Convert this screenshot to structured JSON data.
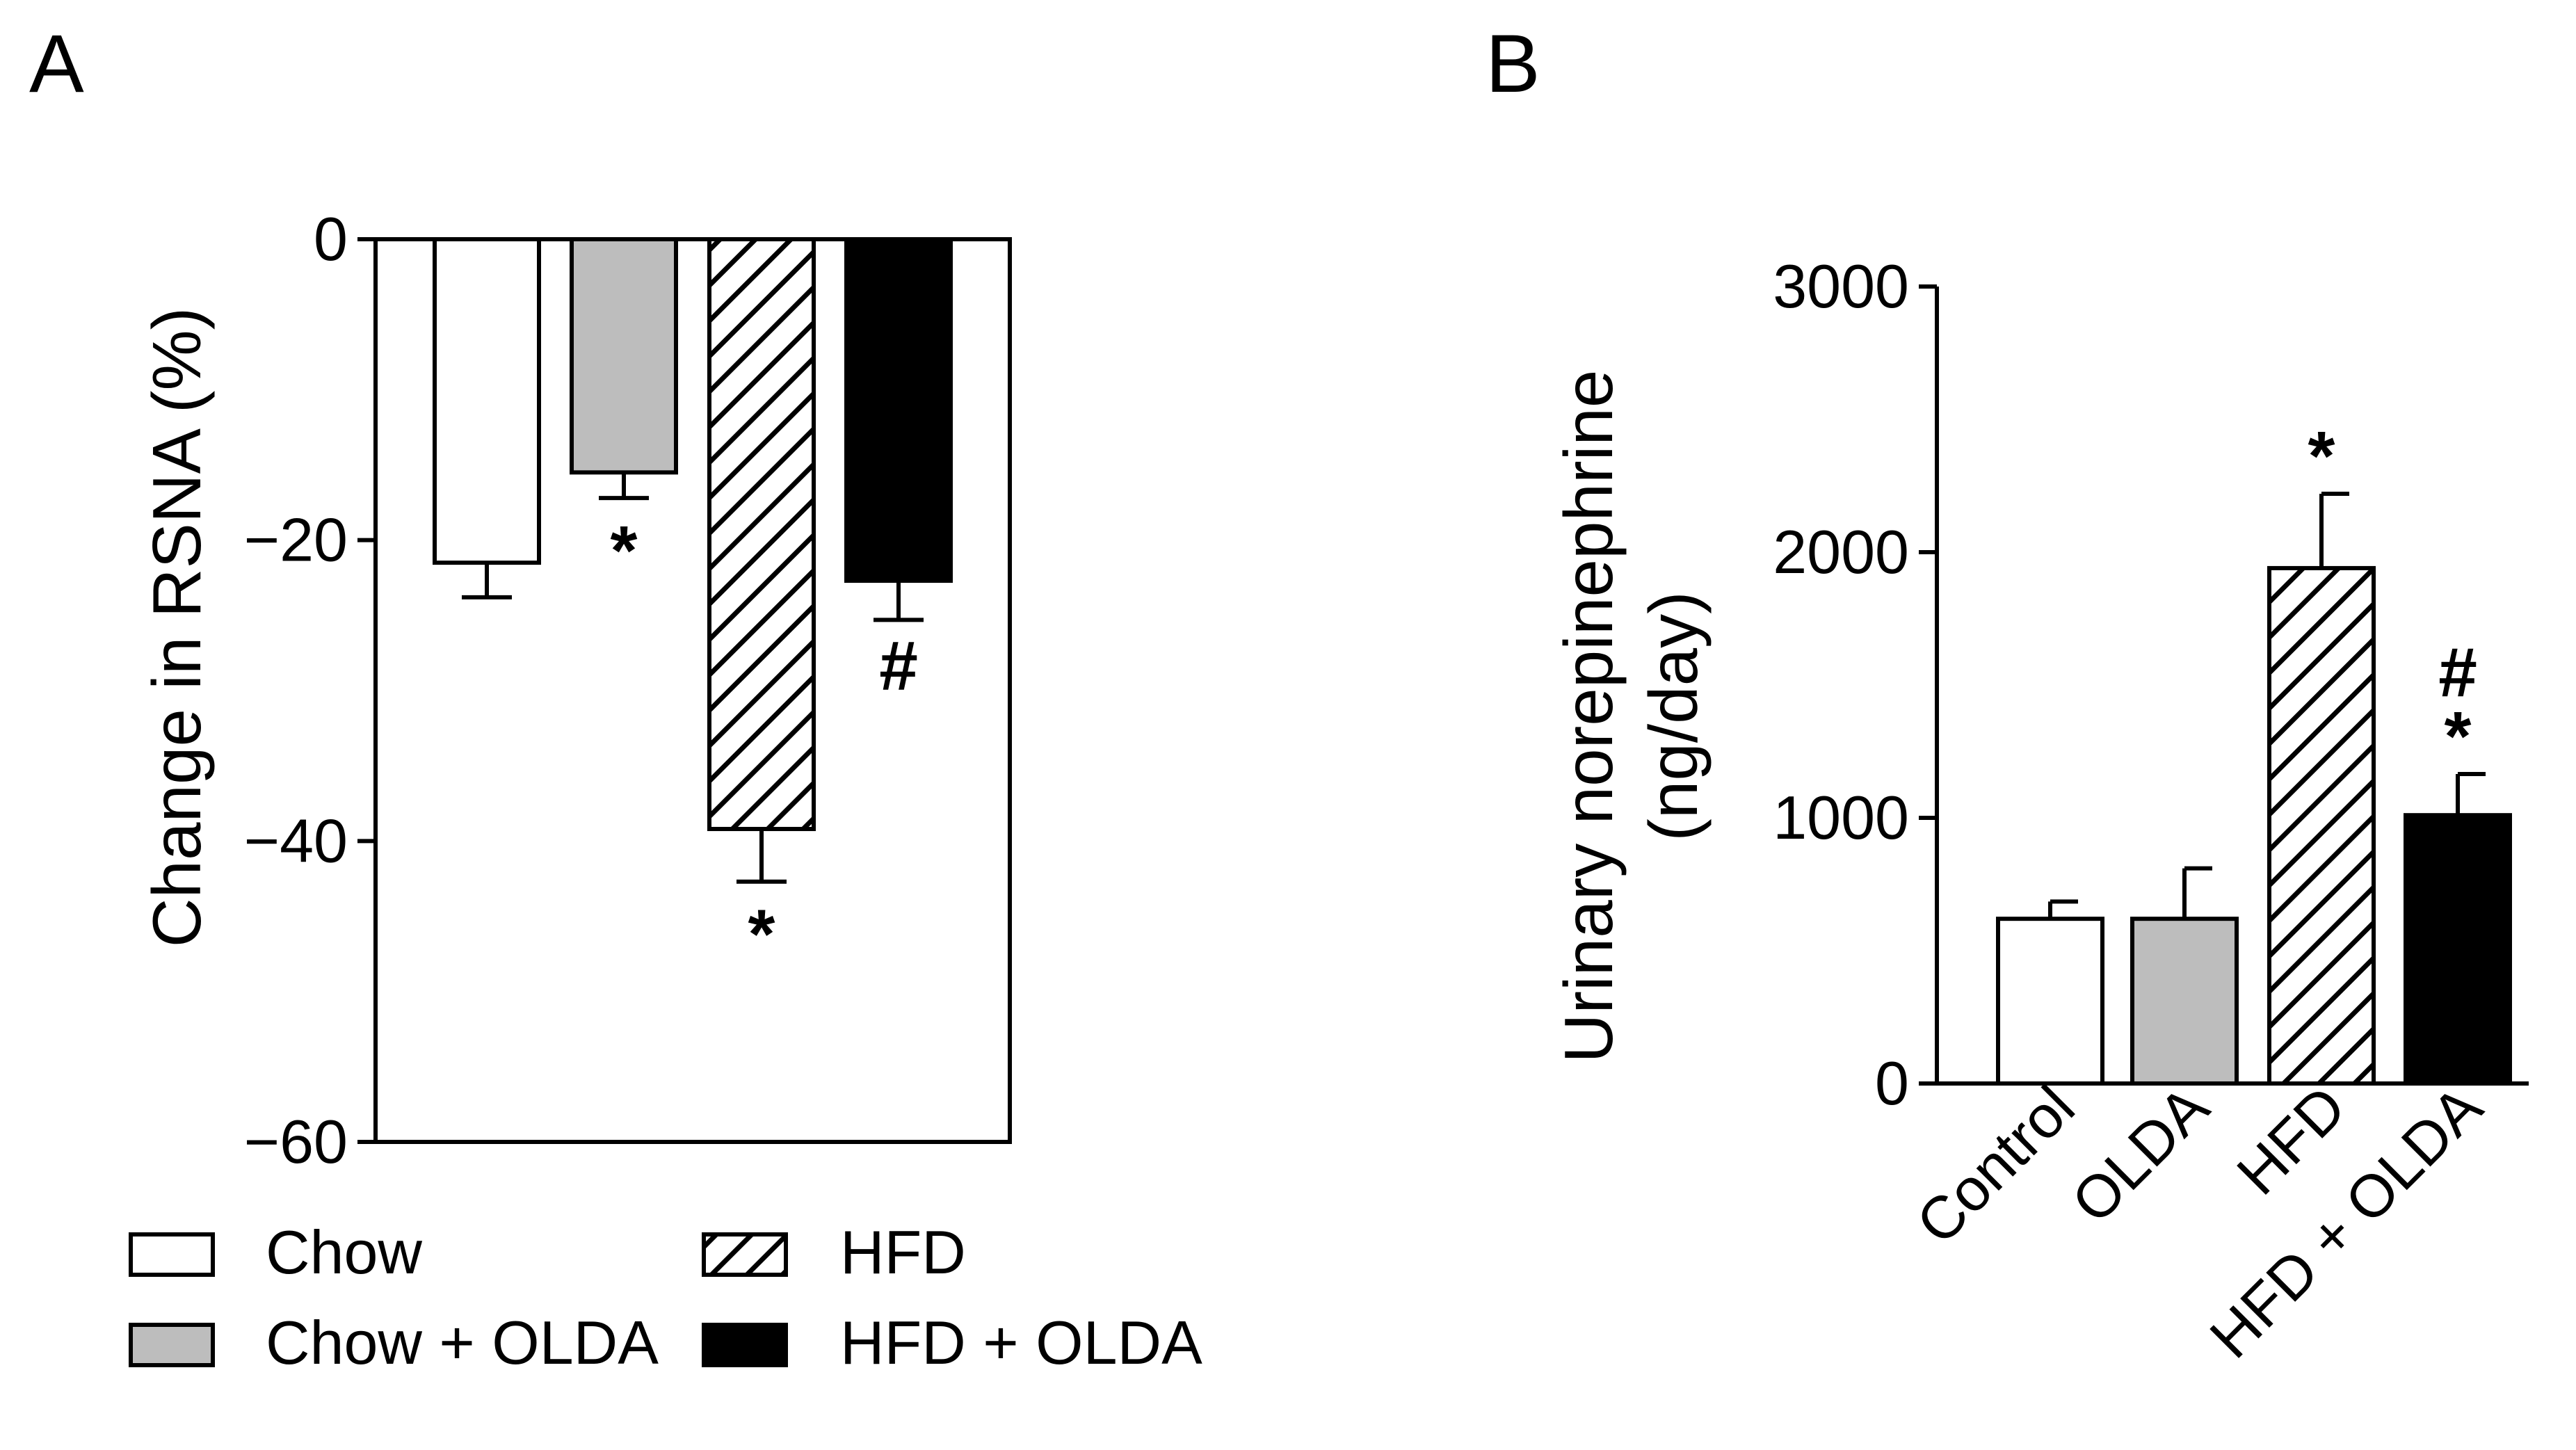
{
  "chart_data": [
    {
      "panel": "A",
      "type": "bar",
      "ylabel": "Change in RSNA (%)",
      "ylim": [
        -60,
        0
      ],
      "yticks": [
        0,
        -20,
        -40,
        -60
      ],
      "yticklabels": [
        "0",
        "−20",
        "−40",
        "−60"
      ],
      "categories": [
        "Chow",
        "Chow + OLDA",
        "HFD",
        "HFD + OLDA"
      ],
      "series": [
        {
          "values": [
            -21.5,
            -15.5,
            -39.2,
            -22.7
          ],
          "errors": [
            2.3,
            1.7,
            3.5,
            2.6
          ]
        }
      ],
      "bar_styles": [
        "white",
        "gray",
        "hatched",
        "black"
      ],
      "annotations": [
        "",
        "*",
        "*",
        "#"
      ],
      "legend": {
        "placement": "bottom",
        "entries": [
          "Chow",
          "Chow + OLDA",
          "HFD",
          "HFD + OLDA"
        ]
      }
    },
    {
      "panel": "B",
      "type": "bar",
      "ylabel_line1": "Urinary norepinephrine",
      "ylabel_line2": "(ng/day)",
      "ylim": [
        0,
        3000
      ],
      "yticks": [
        0,
        1000,
        2000,
        3000
      ],
      "yticklabels": [
        "0",
        "1000",
        "2000",
        "3000"
      ],
      "categories": [
        "Control",
        "OLDA",
        "HFD",
        "HFD + OLDA"
      ],
      "series": [
        {
          "values": [
            620,
            620,
            1940,
            1010
          ],
          "errors": [
            65,
            190,
            280,
            155
          ]
        }
      ],
      "bar_styles": [
        "white",
        "gray",
        "hatched",
        "black"
      ],
      "annotations": [
        [],
        [],
        [
          "*"
        ],
        [
          "#",
          "*"
        ]
      ]
    }
  ],
  "colors": {
    "gray": "#bdbdbd",
    "black": "#000000",
    "white": "#ffffff"
  }
}
